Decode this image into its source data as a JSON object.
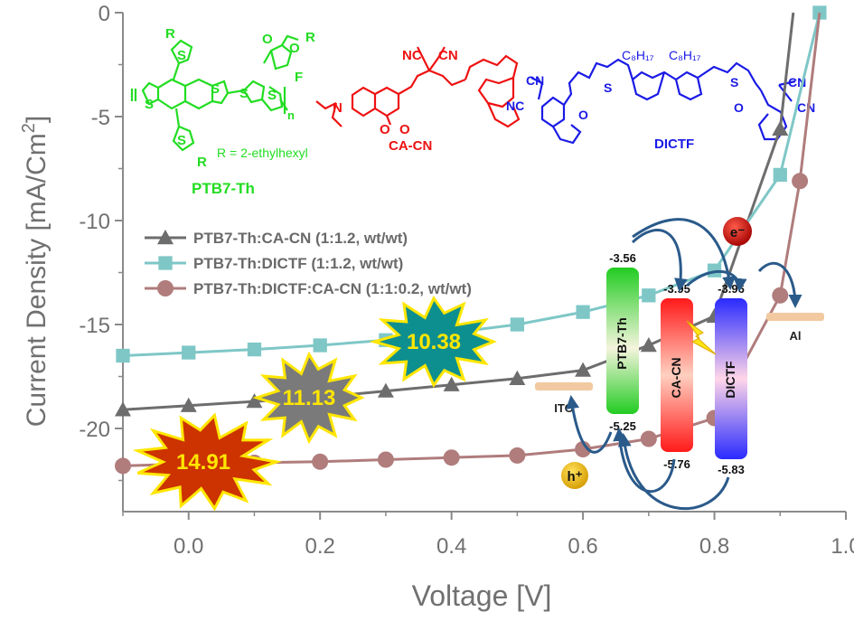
{
  "chart_data": {
    "type": "line",
    "xlabel": "Voltage [V]",
    "ylabel": "Current Density [mA/Cm²]",
    "ylabel_main": "Current Density [mA/Cm",
    "ylabel_sup": "2",
    "ylabel_end": "]",
    "xlim": [
      -0.1,
      1.0
    ],
    "ylim": [
      -24,
      0
    ],
    "xticks": [
      "0.0",
      "0.2",
      "0.4",
      "0.6",
      "0.8",
      "1.0"
    ],
    "xtick_values": [
      0.0,
      0.2,
      0.4,
      0.6,
      0.8,
      1.0
    ],
    "yticks": [
      "0",
      "-5",
      "-10",
      "-15",
      "-20"
    ],
    "ytick_values": [
      0,
      -5,
      -10,
      -15,
      -20
    ],
    "grid": false,
    "legend_position": "center-left",
    "series": [
      {
        "name": "PTB7-Th:CA-CN (1:1.2, wt/wt)",
        "color": "#6d6d6d",
        "marker": "triangle",
        "x": [
          -0.1,
          0.0,
          0.1,
          0.2,
          0.3,
          0.4,
          0.5,
          0.6,
          0.7,
          0.8,
          0.9,
          0.92
        ],
        "y": [
          -19.1,
          -18.9,
          -18.7,
          -18.5,
          -18.2,
          -17.9,
          -17.6,
          -17.2,
          -16.0,
          -14.6,
          -5.6,
          0.0
        ]
      },
      {
        "name": "PTB7-Th:DICTF (1:1.2, wt/wt)",
        "color": "#7fc7c7",
        "marker": "square",
        "x": [
          -0.1,
          0.0,
          0.1,
          0.2,
          0.3,
          0.4,
          0.5,
          0.6,
          0.7,
          0.8,
          0.9,
          0.96
        ],
        "y": [
          -16.5,
          -16.35,
          -16.2,
          -16.0,
          -15.75,
          -15.4,
          -15.0,
          -14.4,
          -13.6,
          -12.4,
          -7.8,
          0.0
        ]
      },
      {
        "name": "PTB7-Th:DICTF:CA-CN (1:1:0.2, wt/wt)",
        "color": "#b07c7c",
        "marker": "circle",
        "x": [
          -0.1,
          0.0,
          0.1,
          0.2,
          0.3,
          0.4,
          0.5,
          0.6,
          0.7,
          0.8,
          0.9,
          0.93,
          0.96
        ],
        "y": [
          -21.8,
          -21.7,
          -21.65,
          -21.6,
          -21.5,
          -21.4,
          -21.3,
          -21.0,
          -20.5,
          -19.5,
          -13.6,
          -8.1,
          0.0
        ]
      }
    ],
    "annotations": {
      "pce_labels": [
        "14.91",
        "11.13",
        "10.38"
      ],
      "molecules": {
        "ptb7": "PTB7-Th",
        "ptb7_r": "R = 2-ethylhexyl",
        "ptb7_n": "n",
        "cacn": "CA-CN",
        "dictf": "DICTF",
        "cn": "CN",
        "nc": "NC",
        "c8": "C₈H₁₇",
        "o": "O",
        "f": "F",
        "s": "S",
        "r": "R",
        "n_atom": "N"
      },
      "energy": {
        "ptb7_label": "PTB7-Th",
        "cacn_label": "CA-CN",
        "dictf_label": "DICTF",
        "ito": "ITO",
        "al": "Al",
        "ptb7_lumo": "-3.56",
        "ptb7_homo": "-5.25",
        "cacn_lumo": "-3.95",
        "cacn_homo": "-5.76",
        "dictf_lumo": "-3.96",
        "dictf_homo": "-5.83",
        "electron": "e⁻",
        "hole": "h⁺"
      }
    }
  }
}
